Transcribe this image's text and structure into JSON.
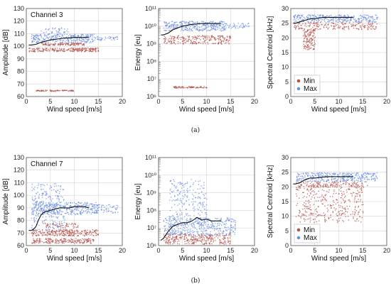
{
  "colors": {
    "min": "#b5524b",
    "max": "#6d8fe0",
    "line": "#111111",
    "grid": "#d4d4d4",
    "frame": "#555555"
  },
  "captions": [
    "(a)",
    "(b)"
  ],
  "legend": {
    "min": "Min",
    "max": "Max"
  },
  "chart_data": [
    {
      "id": "a-amp",
      "type": "scatter",
      "row": 0,
      "col": 0,
      "annotation": "Channel 3",
      "xlabel": "Wind speed [m/s]",
      "ylabel": "Amplitude [dB]",
      "xlim": [
        0,
        20
      ],
      "ylim": [
        60,
        130
      ],
      "ylog": false,
      "xticks": [
        0,
        5,
        10,
        15,
        20
      ],
      "yticks": [
        60,
        70,
        80,
        90,
        100,
        110,
        120,
        130
      ],
      "ytick_labels": [
        "60",
        "70",
        "80",
        "90",
        "100",
        "110",
        "120",
        "130"
      ],
      "max_bands": [
        {
          "x": [
            1,
            14
          ],
          "y": [
            103,
            110
          ],
          "n": 300
        },
        {
          "x": [
            14,
            19
          ],
          "y": [
            105,
            108
          ],
          "n": 45
        },
        {
          "x": [
            3,
            9
          ],
          "y": [
            110,
            115
          ],
          "n": 40
        }
      ],
      "min_bands": [
        {
          "x": [
            0.5,
            15
          ],
          "y": [
            96,
            99
          ],
          "n": 230
        },
        {
          "x": [
            3,
            12
          ],
          "y": [
            101,
            103
          ],
          "n": 110
        },
        {
          "x": [
            2,
            10
          ],
          "y": [
            64.5,
            65.5
          ],
          "n": 90
        }
      ],
      "mean_line": {
        "x": [
          0.5,
          1,
          2,
          3,
          4,
          5,
          6,
          7,
          8,
          9,
          10,
          11,
          12,
          13
        ],
        "y": [
          101,
          101,
          101.5,
          103,
          104,
          105,
          105.5,
          106,
          106.5,
          106.5,
          107,
          107,
          107,
          107
        ]
      },
      "legend": false
    },
    {
      "id": "a-energy",
      "type": "scatter",
      "row": 0,
      "col": 1,
      "annotation": "",
      "xlabel": "Wind speed [m/s]",
      "ylabel": "Energy [eu]",
      "xlim": [
        0,
        20
      ],
      "ylim": [
        6,
        11
      ],
      "ylog": true,
      "xticks": [
        0,
        5,
        10,
        15,
        20
      ],
      "yticks": [
        6,
        7,
        8,
        9,
        10,
        11
      ],
      "ytick_labels": [
        "10⁶",
        "10⁷",
        "10⁸",
        "10⁹",
        "10¹⁰",
        "10¹¹"
      ],
      "max_bands": [
        {
          "x": [
            1,
            14
          ],
          "y": [
            9.75,
            10.3
          ],
          "n": 320
        },
        {
          "x": [
            14,
            19
          ],
          "y": [
            9.9,
            10.2
          ],
          "n": 40
        }
      ],
      "min_bands": [
        {
          "x": [
            1,
            15
          ],
          "y": [
            9.0,
            9.5
          ],
          "n": 240
        },
        {
          "x": [
            3,
            10
          ],
          "y": [
            6.5,
            6.6
          ],
          "n": 80
        }
      ],
      "mean_line": {
        "x": [
          0.5,
          1,
          2,
          3,
          4,
          5,
          6,
          7,
          8,
          9,
          10,
          11,
          12,
          13
        ],
        "y": [
          9.5,
          9.5,
          9.6,
          9.8,
          9.9,
          10.0,
          10.05,
          10.1,
          10.12,
          10.15,
          10.15,
          10.15,
          10.15,
          10.15
        ]
      },
      "legend": false
    },
    {
      "id": "a-centroid",
      "type": "scatter",
      "row": 0,
      "col": 2,
      "annotation": "",
      "xlabel": "Wind speed [m/s]",
      "ylabel": "Spectral Centroid [kHz]",
      "xlim": [
        0,
        20
      ],
      "ylim": [
        0,
        30
      ],
      "ylog": false,
      "xticks": [
        0,
        5,
        10,
        15,
        20
      ],
      "yticks": [
        0,
        5,
        10,
        15,
        20,
        25,
        30
      ],
      "ytick_labels": [
        "0",
        "5",
        "10",
        "15",
        "20",
        "25",
        "30"
      ],
      "max_bands": [
        {
          "x": [
            0.5,
            18
          ],
          "y": [
            25.5,
            28
          ],
          "n": 330
        }
      ],
      "min_bands": [
        {
          "x": [
            0.5,
            18
          ],
          "y": [
            23,
            25.5
          ],
          "n": 200
        },
        {
          "x": [
            2.5,
            5
          ],
          "y": [
            16,
            23
          ],
          "n": 130
        }
      ],
      "mean_line": {
        "x": [
          0.5,
          1,
          2,
          3,
          4,
          5,
          6,
          7,
          8,
          9,
          10,
          11,
          12,
          13
        ],
        "y": [
          25,
          25,
          25.5,
          26,
          26.5,
          26.5,
          26.8,
          27,
          27,
          27,
          27,
          27,
          27,
          27
        ]
      },
      "legend": true
    },
    {
      "id": "b-amp",
      "type": "scatter",
      "row": 1,
      "col": 0,
      "annotation": "Channel 7",
      "xlabel": "Wind speed [m/s]",
      "ylabel": "Amplitude [dB]",
      "xlim": [
        0,
        20
      ],
      "ylim": [
        60,
        130
      ],
      "ylog": false,
      "xticks": [
        0,
        5,
        10,
        15,
        20
      ],
      "yticks": [
        60,
        70,
        80,
        90,
        100,
        110,
        120,
        130
      ],
      "ytick_labels": [
        "60",
        "70",
        "80",
        "90",
        "100",
        "110",
        "120",
        "130"
      ],
      "max_bands": [
        {
          "x": [
            1,
            15
          ],
          "y": [
            85,
            95
          ],
          "n": 350
        },
        {
          "x": [
            1,
            8
          ],
          "y": [
            72,
            110
          ],
          "n": 260
        },
        {
          "x": [
            14,
            19
          ],
          "y": [
            86,
            93
          ],
          "n": 60
        }
      ],
      "min_bands": [
        {
          "x": [
            1,
            15
          ],
          "y": [
            68,
            73
          ],
          "n": 260
        },
        {
          "x": [
            1,
            14
          ],
          "y": [
            62,
            66
          ],
          "n": 200
        },
        {
          "x": [
            3,
            11
          ],
          "y": [
            74,
            78
          ],
          "n": 60
        }
      ],
      "mean_line": {
        "x": [
          0.5,
          1,
          1.5,
          2,
          2.5,
          3,
          3.5,
          4,
          5,
          6,
          7,
          8,
          9,
          10,
          11,
          12,
          13
        ],
        "y": [
          72,
          72,
          73,
          75,
          80,
          84,
          86,
          87,
          88,
          89,
          90,
          90,
          90,
          91,
          91,
          91,
          90
        ]
      },
      "legend": false
    },
    {
      "id": "b-energy",
      "type": "scatter",
      "row": 1,
      "col": 1,
      "annotation": "",
      "xlabel": "Wind speed [m/s]",
      "ylabel": "Energy [eu]",
      "xlim": [
        0,
        20
      ],
      "ylim": [
        6,
        11
      ],
      "ylog": true,
      "xticks": [
        0,
        5,
        10,
        15,
        20
      ],
      "yticks": [
        6,
        7,
        8,
        9,
        10,
        11
      ],
      "ytick_labels": [
        "10⁶",
        "10⁷",
        "10⁸",
        "10⁹",
        "10¹⁰",
        "10¹¹"
      ],
      "max_bands": [
        {
          "x": [
            1,
            16
          ],
          "y": [
            6.6,
            7.6
          ],
          "n": 380
        },
        {
          "x": [
            2,
            10
          ],
          "y": [
            7.2,
            9.8
          ],
          "n": 230
        }
      ],
      "min_bands": [
        {
          "x": [
            1,
            15
          ],
          "y": [
            6.1,
            6.7
          ],
          "n": 300
        }
      ],
      "mean_line": {
        "x": [
          0.5,
          1,
          2,
          3,
          4,
          5,
          6,
          7,
          8,
          9,
          10,
          11,
          12,
          13
        ],
        "y": [
          6.3,
          6.4,
          6.8,
          7.1,
          7.2,
          7.3,
          7.3,
          7.4,
          7.6,
          7.45,
          7.5,
          7.4,
          7.4,
          7.4
        ]
      },
      "legend": false
    },
    {
      "id": "b-centroid",
      "type": "scatter",
      "row": 1,
      "col": 2,
      "annotation": "",
      "xlabel": "Wind speed [m/s]",
      "ylabel": "Spectral Centroid [kHz]",
      "xlim": [
        0,
        20
      ],
      "ylim": [
        0,
        30
      ],
      "ylog": false,
      "xticks": [
        0,
        5,
        10,
        15,
        20
      ],
      "yticks": [
        0,
        5,
        10,
        15,
        20,
        25,
        30
      ],
      "ytick_labels": [
        "0",
        "5",
        "10",
        "15",
        "20",
        "25",
        "30"
      ],
      "max_bands": [
        {
          "x": [
            1,
            18
          ],
          "y": [
            22,
            25
          ],
          "n": 340
        }
      ],
      "min_bands": [
        {
          "x": [
            1,
            15
          ],
          "y": [
            8,
            21
          ],
          "n": 380
        },
        {
          "x": [
            1,
            16
          ],
          "y": [
            20,
            22
          ],
          "n": 120
        }
      ],
      "mean_line": {
        "x": [
          0.5,
          1,
          2,
          3,
          4,
          5,
          6,
          7,
          8,
          9,
          10,
          11,
          12,
          13
        ],
        "y": [
          21,
          21,
          21.5,
          22.5,
          23,
          23,
          23.2,
          23.4,
          23.5,
          23.5,
          23.5,
          23.5,
          23.5,
          23.5
        ]
      },
      "legend": true
    }
  ]
}
